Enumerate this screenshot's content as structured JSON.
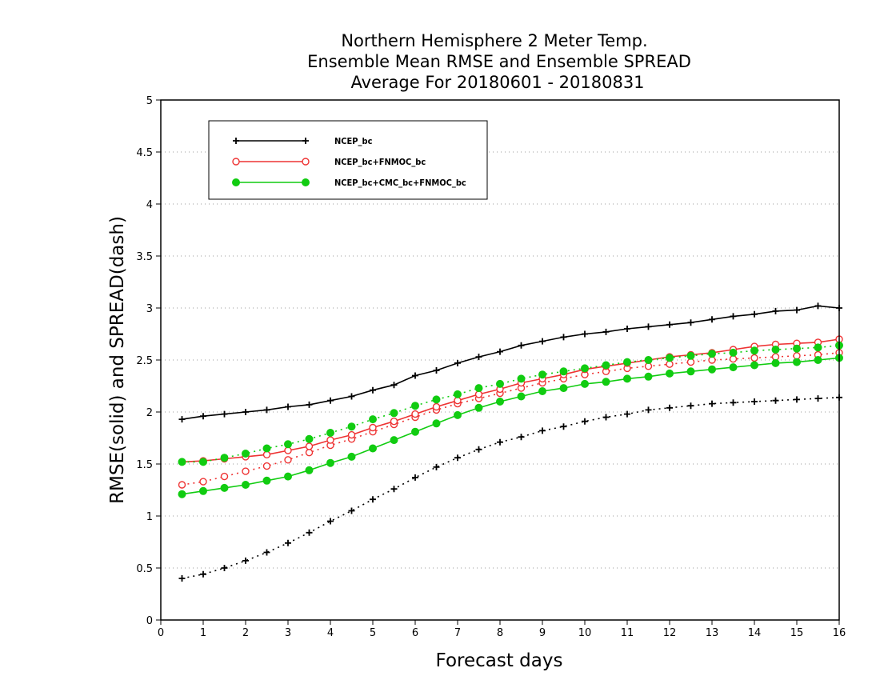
{
  "chart_data": {
    "type": "line",
    "title": [
      "Northern Hemisphere 2 Meter Temp.",
      "Ensemble Mean RMSE and Ensemble SPREAD",
      "Average For 20180601 - 20180831"
    ],
    "xlabel": "Forecast days",
    "ylabel": "RMSE(solid) and SPREAD(dash)",
    "xlim": [
      0,
      16
    ],
    "ylim": [
      0,
      5
    ],
    "xticks": [
      "0",
      "1",
      "2",
      "3",
      "4",
      "5",
      "6",
      "7",
      "8",
      "9",
      "10",
      "11",
      "12",
      "13",
      "14",
      "15",
      "16"
    ],
    "yticks": [
      "0",
      "0.5",
      "1",
      "1.5",
      "2",
      "2.5",
      "3",
      "3.5",
      "4",
      "4.5",
      "5"
    ],
    "grid": "horizontal-dotted",
    "legend_position": "top-left",
    "x": [
      0.5,
      1,
      1.5,
      2,
      2.5,
      3,
      3.5,
      4,
      4.5,
      5,
      5.5,
      6,
      6.5,
      7,
      7.5,
      8,
      8.5,
      9,
      9.5,
      10,
      10.5,
      11,
      11.5,
      12,
      12.5,
      13,
      13.5,
      14,
      14.5,
      15,
      15.5,
      16
    ],
    "series": [
      {
        "name": "NCEP_bc",
        "color": "#000000",
        "marker": "plus",
        "rmse": [
          1.93,
          1.96,
          1.98,
          2.0,
          2.02,
          2.05,
          2.07,
          2.11,
          2.15,
          2.21,
          2.26,
          2.35,
          2.4,
          2.47,
          2.53,
          2.58,
          2.64,
          2.68,
          2.72,
          2.75,
          2.77,
          2.8,
          2.82,
          2.84,
          2.86,
          2.89,
          2.92,
          2.94,
          2.97,
          2.98,
          3.02,
          3.0
        ],
        "spread": [
          0.4,
          0.44,
          0.5,
          0.57,
          0.65,
          0.74,
          0.84,
          0.95,
          1.05,
          1.16,
          1.26,
          1.37,
          1.47,
          1.56,
          1.64,
          1.71,
          1.76,
          1.82,
          1.86,
          1.91,
          1.95,
          1.98,
          2.02,
          2.04,
          2.06,
          2.08,
          2.09,
          2.1,
          2.11,
          2.12,
          2.13,
          2.14
        ]
      },
      {
        "name": "NCEP_bc+FNMOC_bc",
        "color": "#ee3333",
        "marker": "open-circle",
        "rmse": [
          1.52,
          1.53,
          1.55,
          1.57,
          1.59,
          1.63,
          1.67,
          1.73,
          1.78,
          1.85,
          1.91,
          1.98,
          2.05,
          2.11,
          2.17,
          2.22,
          2.28,
          2.32,
          2.36,
          2.41,
          2.44,
          2.47,
          2.5,
          2.53,
          2.55,
          2.57,
          2.6,
          2.63,
          2.65,
          2.66,
          2.67,
          2.7
        ],
        "spread": [
          1.3,
          1.33,
          1.38,
          1.43,
          1.48,
          1.54,
          1.61,
          1.68,
          1.74,
          1.81,
          1.88,
          1.95,
          2.02,
          2.08,
          2.13,
          2.18,
          2.23,
          2.28,
          2.32,
          2.36,
          2.39,
          2.42,
          2.44,
          2.46,
          2.48,
          2.5,
          2.51,
          2.52,
          2.53,
          2.54,
          2.55,
          2.57
        ]
      },
      {
        "name": "NCEP_bc+CMC_bc+FNMOC_bc",
        "color": "#11cc11",
        "marker": "filled-circle",
        "rmse": [
          1.21,
          1.24,
          1.27,
          1.3,
          1.34,
          1.38,
          1.44,
          1.51,
          1.57,
          1.65,
          1.73,
          1.81,
          1.89,
          1.97,
          2.04,
          2.1,
          2.15,
          2.2,
          2.23,
          2.27,
          2.29,
          2.32,
          2.34,
          2.37,
          2.39,
          2.41,
          2.43,
          2.45,
          2.47,
          2.48,
          2.5,
          2.52
        ],
        "spread": [
          1.52,
          1.52,
          1.56,
          1.6,
          1.65,
          1.69,
          1.74,
          1.8,
          1.86,
          1.93,
          1.99,
          2.06,
          2.12,
          2.17,
          2.23,
          2.27,
          2.32,
          2.36,
          2.39,
          2.42,
          2.45,
          2.48,
          2.5,
          2.52,
          2.54,
          2.56,
          2.57,
          2.59,
          2.6,
          2.61,
          2.62,
          2.64
        ]
      }
    ]
  }
}
